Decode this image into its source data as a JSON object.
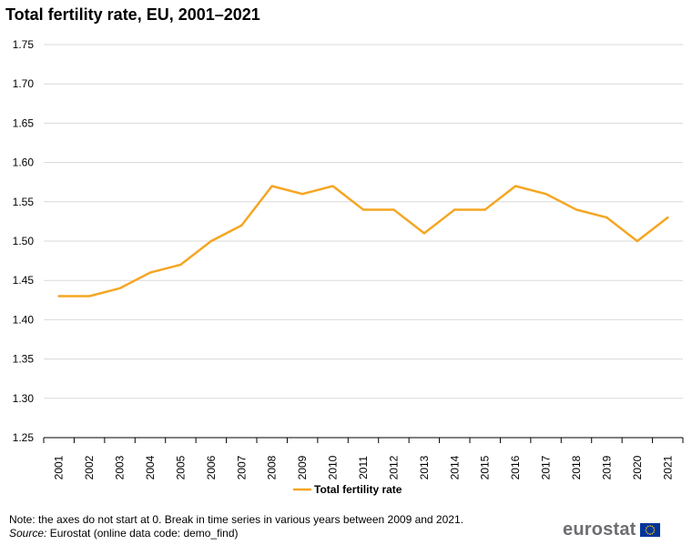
{
  "title": "Total fertility rate, EU, 2001–2021",
  "chart_data": {
    "type": "line",
    "title": "Total fertility rate, EU, 2001–2021",
    "xlabel": "",
    "ylabel": "",
    "categories": [
      "2001",
      "2002",
      "2003",
      "2004",
      "2005",
      "2006",
      "2007",
      "2008",
      "2009",
      "2010",
      "2011",
      "2012",
      "2013",
      "2014",
      "2015",
      "2016",
      "2017",
      "2018",
      "2019",
      "2020",
      "2021"
    ],
    "series": [
      {
        "name": "Total fertility rate",
        "color": "#f5a623",
        "values": [
          1.43,
          1.43,
          1.44,
          1.46,
          1.47,
          1.5,
          1.52,
          1.57,
          1.56,
          1.57,
          1.54,
          1.54,
          1.51,
          1.54,
          1.54,
          1.57,
          1.56,
          1.54,
          1.53,
          1.5,
          1.53
        ]
      }
    ],
    "ylim": [
      1.25,
      1.75
    ],
    "yticks": [
      1.25,
      1.3,
      1.35,
      1.4,
      1.45,
      1.5,
      1.55,
      1.6,
      1.65,
      1.7,
      1.75
    ],
    "ytick_labels": [
      "1.25",
      "1.30",
      "1.35",
      "1.40",
      "1.45",
      "1.50",
      "1.55",
      "1.60",
      "1.65",
      "1.70",
      "1.75"
    ],
    "grid": true,
    "legend_position": "bottom-center"
  },
  "footer": {
    "note": "Note: the axes do not start at 0. Break in time series in various years between 2009 and 2021.",
    "source_label": "Source:",
    "source_text": " Eurostat (online data code: demo_find)",
    "logo_text": "eurostat"
  },
  "colors": {
    "line": "#f5a623",
    "grid": "#d9d9d9",
    "axis": "#000000",
    "logo_text": "#6d6e71",
    "flag_blue": "#003399",
    "flag_star": "#ffcc00"
  }
}
